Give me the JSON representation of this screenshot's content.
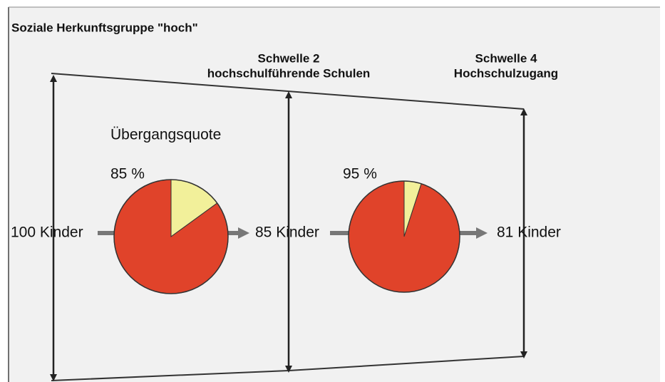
{
  "title": "Soziale Herkunftsgruppe \"hoch\"",
  "thresholds": [
    {
      "name": "Schwelle 2",
      "subtitle": "hochschulführende Schulen"
    },
    {
      "name": "Schwelle 4",
      "subtitle": "Hochschulzugang"
    }
  ],
  "rate_label": "Übergangsquote",
  "stages": [
    "100 Kinder",
    "85 Kinder",
    "81 Kinder"
  ],
  "pies": [
    {
      "label": "85 %",
      "value": 85
    },
    {
      "label": "95 %",
      "value": 95
    }
  ]
}
